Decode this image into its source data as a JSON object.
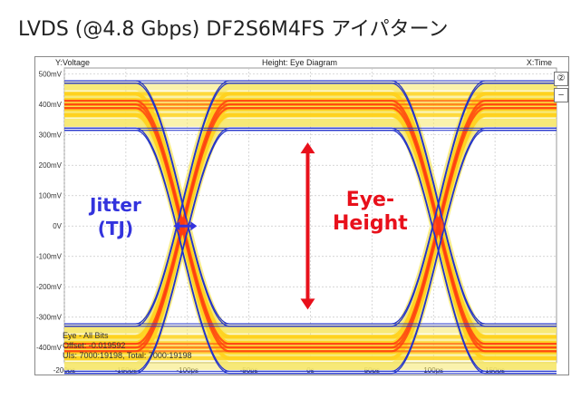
{
  "title": "LVDS (@4.8 Gbps)   DF2S6M4FS アイパターン",
  "scope": {
    "y_header": "Y:Voltage",
    "center_header": "Height: Eye Diagram",
    "x_header": "X:Time",
    "side_button_1": "②",
    "side_button_2": "–",
    "info_line_1": "Eye - All Bits",
    "info_line_2": "Offset: -0.019592",
    "info_line_3": "UIs: 7000:19198, Total: 7000:19198"
  },
  "annotations": {
    "jitter_line_1": "Jitter",
    "jitter_line_2": "(TJ)",
    "eye_line_1": "Eye-",
    "eye_line_2": "Height"
  },
  "colors": {
    "jitter": "#3333dd",
    "eye_height": "#e8101b",
    "trace_outer": "#2233cc",
    "trace_mid": "#ffd21f",
    "trace_hot": "#ff3a10",
    "trace_fill": "#f6e86a",
    "grid": "#c8c8c8"
  },
  "chart_data": {
    "type": "eye_diagram",
    "title": "LVDS (@4.8 Gbps)   DF2S6M4FS アイパターン",
    "xlabel": "X:Time",
    "ylabel": "Y:Voltage",
    "x_unit": "ps",
    "y_unit": "mV",
    "xlim": [
      -200,
      200
    ],
    "ylim": [
      -450,
      520
    ],
    "x_ticks": [
      "-200ps",
      "-150ps",
      "-100ps",
      "-50ps",
      "0s",
      "50ps",
      "100ps",
      "150ps"
    ],
    "x_tick_values": [
      -200,
      -150,
      -100,
      -50,
      0,
      50,
      100,
      150
    ],
    "y_ticks": [
      "500mV",
      "400mV",
      "300mV",
      "200mV",
      "100mV",
      "0V",
      "-100mV",
      "-200mV",
      "-300mV",
      "-400mV"
    ],
    "y_tick_values": [
      500,
      400,
      300,
      200,
      100,
      0,
      -100,
      -200,
      -300,
      -400
    ],
    "grid": true,
    "high_level_mV": 400,
    "low_level_mV": -400,
    "eye_top_mV": 275,
    "eye_bottom_mV": -275,
    "crossing_times_ps": [
      -104,
      104
    ],
    "crossing_level_mV": 0
  }
}
